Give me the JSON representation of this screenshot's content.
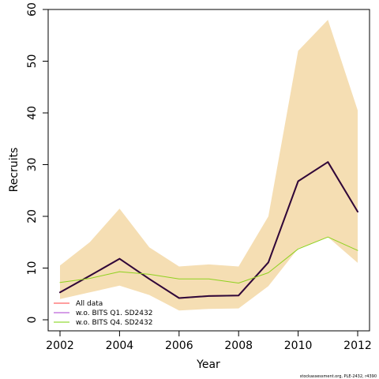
{
  "chart_data": {
    "type": "line",
    "xlabel": "Year",
    "ylabel": "Recruits",
    "xlim": [
      2002,
      2012
    ],
    "ylim": [
      0,
      60
    ],
    "x_ticks": [
      "2002",
      "2004",
      "2006",
      "2008",
      "2010",
      "2012"
    ],
    "y_ticks": [
      "0",
      "10",
      "20",
      "30",
      "40",
      "50",
      "60"
    ],
    "x": [
      2002,
      2003,
      2004,
      2005,
      2006,
      2007,
      2008,
      2009,
      2010,
      2011,
      2012
    ],
    "band": {
      "color": "#f5deb3",
      "lower": [
        4.0,
        5.3,
        6.6,
        4.8,
        1.8,
        2.1,
        2.2,
        6.5,
        13.8,
        16.0,
        11.0
      ],
      "upper": [
        10.5,
        15.0,
        21.5,
        14.0,
        10.3,
        10.7,
        10.3,
        20.0,
        52.0,
        58.0,
        40.5
      ]
    },
    "series": [
      {
        "name": "All data",
        "color": "#ff7f7f",
        "width": 2,
        "values": [
          5.3,
          8.5,
          11.8,
          7.9,
          4.2,
          4.6,
          4.7,
          11.1,
          26.8,
          30.5,
          20.9
        ]
      },
      {
        "name": "w.o. BITS Q1. SD2432",
        "color": "#2d0a3a",
        "width": 2,
        "values": [
          5.3,
          8.5,
          11.8,
          7.9,
          4.2,
          4.6,
          4.7,
          11.1,
          26.8,
          30.5,
          20.9
        ]
      },
      {
        "name": "w.o. BITS Q4. SD2432",
        "color": "#8fd11f",
        "width": 1,
        "values": [
          7.2,
          8.0,
          9.3,
          8.8,
          7.9,
          7.9,
          7.1,
          9.1,
          13.7,
          16.0,
          13.4
        ]
      }
    ],
    "legend": {
      "position": "bottom-left",
      "entries": [
        {
          "label": "All data",
          "color": "#ff7f7f"
        },
        {
          "label": "w.o. BITS Q1. SD2432",
          "color": "#c77fe0"
        },
        {
          "label": "w.o. BITS Q4. SD2432",
          "color": "#a6e05a"
        }
      ]
    },
    "footnote": "stockassessment.org, PLE-2432, r4390",
    "grid": false
  }
}
